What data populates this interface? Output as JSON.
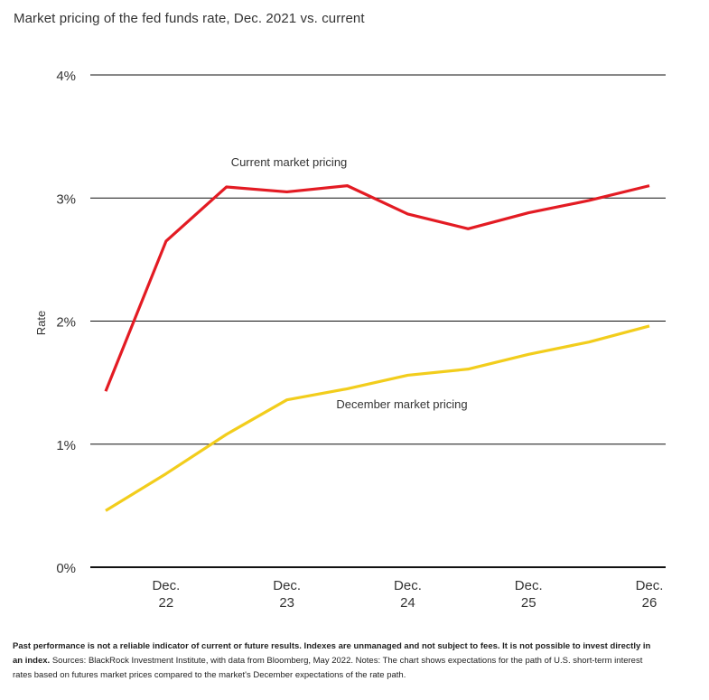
{
  "title": "Market pricing of the fed funds rate, Dec. 2021 vs. current",
  "footnote": {
    "bold": "Past performance is not a reliable indicator of current or future results. Indexes are unmanaged and not subject to fees. It is not possible to invest directly in an index.",
    "regular": " Sources: BlackRock Investment Institute, with data from Bloomberg, May 2022. Notes: The chart shows expectations for the path of U.S. short-term interest rates based on futures market prices compared to the market's December expectations of the rate path."
  },
  "chart_data": {
    "type": "line",
    "title": "Market pricing of the fed funds rate, Dec. 2021 vs. current",
    "xlabel": "",
    "ylabel": "Rate",
    "ylim": [
      0,
      4
    ],
    "y_ticks": [
      "0%",
      "1%",
      "2%",
      "3%",
      "4%"
    ],
    "x_ticks": [
      {
        "line1": "Dec.",
        "line2": "22"
      },
      {
        "line1": "Dec.",
        "line2": "23"
      },
      {
        "line1": "Dec.",
        "line2": "24"
      },
      {
        "line1": "Dec.",
        "line2": "25"
      },
      {
        "line1": "Dec.",
        "line2": "26"
      }
    ],
    "grid": true,
    "x": [
      2022.0,
      2022.5,
      2023.0,
      2023.5,
      2024.0,
      2024.5,
      2025.0,
      2025.5,
      2026.0
    ],
    "x_first": 2021.5,
    "series": [
      {
        "name": "Current market pricing",
        "color": "#e31b23",
        "x": [
          2021.5,
          2022.0,
          2022.5,
          2023.0,
          2023.5,
          2024.0,
          2024.5,
          2025.0,
          2025.5,
          2026.0
        ],
        "values": [
          1.43,
          2.65,
          3.09,
          3.05,
          3.1,
          2.87,
          2.75,
          2.88,
          2.98,
          3.1
        ]
      },
      {
        "name": "December market pricing",
        "color": "#f2cd1c",
        "x": [
          2021.5,
          2022.0,
          2022.5,
          2023.0,
          2023.5,
          2024.0,
          2024.5,
          2025.0,
          2025.5,
          2026.0
        ],
        "values": [
          0.46,
          0.76,
          1.08,
          1.36,
          1.45,
          1.56,
          1.61,
          1.73,
          1.83,
          1.96
        ]
      }
    ],
    "xlim": [
      2021.5,
      2026.0
    ]
  }
}
